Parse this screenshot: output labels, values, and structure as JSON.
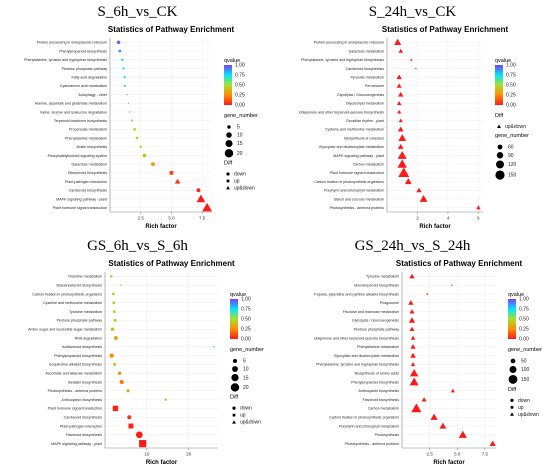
{
  "chart_data": [
    {
      "type": "scatter",
      "panel_title": "S_6h_vs_CK",
      "title": "Statistics of Pathway Enrichment",
      "xlabel": "Rich factor",
      "xticks": [
        2.5,
        5.0,
        7.5
      ],
      "xlim": [
        0,
        8.3
      ],
      "categories": [
        "Protein processing in endoplasmic reticulum",
        "Phenylpropanoid biosynthesis",
        "Phenylalanine, tyrosine and tryptophan biosynthesis",
        "Pentose phosphate pathway",
        "Fatty acid degradation",
        "Cyanoamino acid metabolism",
        "Autophagy - other",
        "Alanine, aspartate and glutamate metabolism",
        "Valine, leucine and isoleucine degradation",
        "Terpenoid backbone biosynthesis",
        "Propanoate metabolism",
        "Phenylalanine metabolism",
        "Zeatin biosynthesis",
        "Phosphatidylinositol signaling system",
        "Galactose metabolism",
        "Diterpenoid biosynthesis",
        "Plant-pathogen interaction",
        "Carotenoid biosynthesis",
        "MAPK signaling pathway - plant",
        "Plant hormone signal transduction"
      ],
      "points": [
        {
          "x": 0.7,
          "q": 0.95,
          "n": 5,
          "diff": "down"
        },
        {
          "x": 0.8,
          "q": 0.85,
          "n": 4,
          "diff": "down"
        },
        {
          "x": 1.0,
          "q": 0.8,
          "n": 3,
          "diff": "down"
        },
        {
          "x": 1.1,
          "q": 0.72,
          "n": 3,
          "diff": "down"
        },
        {
          "x": 1.2,
          "q": 0.7,
          "n": 3,
          "diff": "down"
        },
        {
          "x": 1.2,
          "q": 0.65,
          "n": 3,
          "diff": "down"
        },
        {
          "x": 1.4,
          "q": 0.62,
          "n": 2,
          "diff": "down"
        },
        {
          "x": 1.5,
          "q": 0.6,
          "n": 2,
          "diff": "down"
        },
        {
          "x": 1.6,
          "q": 0.58,
          "n": 2,
          "diff": "down"
        },
        {
          "x": 1.8,
          "q": 0.55,
          "n": 3,
          "diff": "down"
        },
        {
          "x": 2.0,
          "q": 0.5,
          "n": 4,
          "diff": "down"
        },
        {
          "x": 2.2,
          "q": 0.45,
          "n": 4,
          "diff": "down"
        },
        {
          "x": 2.5,
          "q": 0.4,
          "n": 3,
          "diff": "down"
        },
        {
          "x": 2.8,
          "q": 0.35,
          "n": 5,
          "diff": "down"
        },
        {
          "x": 3.5,
          "q": 0.3,
          "n": 6,
          "diff": "down"
        },
        {
          "x": 5.0,
          "q": 0.08,
          "n": 7,
          "diff": "up"
        },
        {
          "x": 5.5,
          "q": 0.05,
          "n": 8,
          "diff": "up&down"
        },
        {
          "x": 7.2,
          "q": 0.02,
          "n": 6,
          "diff": "down"
        },
        {
          "x": 7.4,
          "q": 0.0,
          "n": 16,
          "diff": "up&down"
        },
        {
          "x": 7.9,
          "q": 0.0,
          "n": 19,
          "diff": "up&down"
        }
      ],
      "legend": {
        "qvalue_title": "qvalue",
        "qvalue_ticks": [
          "1.00",
          "0.75",
          "0.50",
          "0.25",
          "0.00"
        ],
        "size_title": "gene_number",
        "size_ticks": [
          5,
          10,
          15,
          20
        ],
        "diff_title": "Diff",
        "diff_items": [
          "down",
          "up",
          "up&down"
        ]
      }
    },
    {
      "type": "scatter",
      "panel_title": "S_24h_vs_CK",
      "title": "Statistics of Pathway Enrichment",
      "xlabel": "Rich factor",
      "xticks": [
        2,
        4,
        6
      ],
      "xlim": [
        0,
        6.3
      ],
      "categories": [
        "Protein processing in endoplasmic reticulum",
        "Galactose metabolism",
        "Phenylalanine, tyrosine and tryptophan biosynthesis",
        "Carotenoid biosynthesis",
        "Pyruvate metabolism",
        "Peroxisome",
        "Glycolysis / Gluconeogenesis",
        "Glycerolipid metabolism",
        "Ubiquinone and other terpenoid-quinone biosynthesis",
        "Circadian rhythm - plant",
        "Cysteine and methionine metabolism",
        "Biosynthesis of cofactors",
        "Glyoxylate and dicarboxylate metabolism",
        "MAPK signaling pathway - plant",
        "Carbon metabolism",
        "Plant hormone signal transduction",
        "Carbon fixation in photosynthetic organisms",
        "Porphyrin and chlorophyll metabolism",
        "Starch and sucrose metabolism",
        "Photosynthesis - antenna proteins"
      ],
      "points": [
        {
          "x": 0.7,
          "q": 0.0,
          "n": 80,
          "diff": "up&down"
        },
        {
          "x": 0.9,
          "q": 0.0,
          "n": 45,
          "diff": "up&down"
        },
        {
          "x": 1.6,
          "q": 0.0,
          "n": 25,
          "diff": "up&down"
        },
        {
          "x": 1.9,
          "q": 0.0,
          "n": 20,
          "diff": "up&down"
        },
        {
          "x": 0.8,
          "q": 0.0,
          "n": 55,
          "diff": "up&down"
        },
        {
          "x": 0.8,
          "q": 0.0,
          "n": 50,
          "diff": "up&down"
        },
        {
          "x": 0.9,
          "q": 0.0,
          "n": 55,
          "diff": "up&down"
        },
        {
          "x": 0.8,
          "q": 0.0,
          "n": 45,
          "diff": "up&down"
        },
        {
          "x": 0.8,
          "q": 0.0,
          "n": 40,
          "diff": "up&down"
        },
        {
          "x": 0.9,
          "q": 0.0,
          "n": 40,
          "diff": "up&down"
        },
        {
          "x": 0.9,
          "q": 0.0,
          "n": 60,
          "diff": "up&down"
        },
        {
          "x": 1.0,
          "q": 0.0,
          "n": 90,
          "diff": "up&down"
        },
        {
          "x": 0.9,
          "q": 0.0,
          "n": 60,
          "diff": "up&down"
        },
        {
          "x": 1.0,
          "q": 0.0,
          "n": 110,
          "diff": "up&down"
        },
        {
          "x": 1.0,
          "q": 0.0,
          "n": 120,
          "diff": "up&down"
        },
        {
          "x": 1.1,
          "q": 0.0,
          "n": 150,
          "diff": "up&down"
        },
        {
          "x": 1.4,
          "q": 0.0,
          "n": 75,
          "diff": "up&down"
        },
        {
          "x": 2.1,
          "q": 0.0,
          "n": 55,
          "diff": "up&down"
        },
        {
          "x": 2.4,
          "q": 0.0,
          "n": 90,
          "diff": "up&down"
        },
        {
          "x": 6.0,
          "q": 0.0,
          "n": 45,
          "diff": "up&down"
        }
      ],
      "legend": {
        "qvalue_title": "qvalue",
        "qvalue_ticks": [
          "1.00",
          "0.75",
          "0.50",
          "0.25",
          "0.00"
        ],
        "size_title": "gene_number",
        "size_ticks": [
          60,
          90,
          120,
          150
        ],
        "diff_title": "Diff",
        "diff_items": [
          "up&down"
        ]
      }
    },
    {
      "type": "scatter",
      "panel_title": "GS_6h_vs_S_6h",
      "title": "Statistics of Pathway Enrichment",
      "xlabel": "Rich factor",
      "xticks": [
        10,
        20
      ],
      "xlim": [
        0,
        27
      ],
      "categories": [
        "Thiamine metabolism",
        "Brassinosteroid biosynthesis",
        "Carbon fixation in photosynthetic organisms",
        "Cysteine and methionine metabolism",
        "Tyrosine metabolism",
        "Pentose phosphate pathway",
        "Amino sugar and nucleotide sugar metabolism",
        "RNA degradation",
        "Isoflavonoid biosynthesis",
        "Phenylpropanoid biosynthesis",
        "Isoquinoline alkaloid biosynthesis",
        "Ascorbate and aldarate metabolism",
        "Betalain biosynthesis",
        "Photosynthesis - antenna proteins",
        "Anthocyanin biosynthesis",
        "Plant hormone signal transduction",
        "Carotenoid biosynthesis",
        "Plant-pathogen interaction",
        "Flavonoid biosynthesis",
        "MAPK signaling pathway - plant"
      ],
      "points": [
        {
          "x": 1.5,
          "q": 0.3,
          "n": 2,
          "diff": "up"
        },
        {
          "x": 3.8,
          "q": 0.6,
          "n": 1,
          "diff": "up"
        },
        {
          "x": 2.0,
          "q": 0.45,
          "n": 3,
          "diff": "up"
        },
        {
          "x": 2.1,
          "q": 0.45,
          "n": 3,
          "diff": "up"
        },
        {
          "x": 2.2,
          "q": 0.45,
          "n": 3,
          "diff": "up"
        },
        {
          "x": 2.4,
          "q": 0.42,
          "n": 3,
          "diff": "down"
        },
        {
          "x": 1.8,
          "q": 0.35,
          "n": 4,
          "diff": "up"
        },
        {
          "x": 2.6,
          "q": 0.35,
          "n": 5,
          "diff": "down"
        },
        {
          "x": 26.0,
          "q": 0.7,
          "n": 1,
          "diff": "up"
        },
        {
          "x": 1.6,
          "q": 0.25,
          "n": 6,
          "diff": "up"
        },
        {
          "x": 2.3,
          "q": 0.35,
          "n": 3,
          "diff": "up"
        },
        {
          "x": 3.5,
          "q": 0.25,
          "n": 4,
          "diff": "up"
        },
        {
          "x": 4.0,
          "q": 0.2,
          "n": 5,
          "diff": "down"
        },
        {
          "x": 5.5,
          "q": 0.25,
          "n": 3,
          "diff": "up"
        },
        {
          "x": 14.5,
          "q": 0.35,
          "n": 2,
          "diff": "up"
        },
        {
          "x": 2.5,
          "q": 0.02,
          "n": 12,
          "diff": "up"
        },
        {
          "x": 5.8,
          "q": 0.05,
          "n": 5,
          "diff": "down"
        },
        {
          "x": 6.2,
          "q": 0.02,
          "n": 10,
          "diff": "up"
        },
        {
          "x": 8.2,
          "q": 0.0,
          "n": 13,
          "diff": "down"
        },
        {
          "x": 9.0,
          "q": 0.0,
          "n": 20,
          "diff": "up"
        }
      ],
      "legend": {
        "qvalue_title": "qvalue",
        "qvalue_ticks": [
          "1.00",
          "0.75",
          "0.50",
          "0.25",
          "0.00"
        ],
        "size_title": "gene_number",
        "size_ticks": [
          5,
          10,
          15,
          20
        ],
        "diff_title": "Diff",
        "diff_items": [
          "down",
          "up",
          "up&down"
        ]
      }
    },
    {
      "type": "scatter",
      "panel_title": "GS_24h_vs_S_24h",
      "title": "Statistics of Pathway Enrichment",
      "xlabel": "Rich factor",
      "xticks": [
        2.5,
        5.0,
        7.5
      ],
      "xlim": [
        0,
        8.5
      ],
      "categories": [
        "Tyrosine metabolism",
        "Monoterpenoid biosynthesis",
        "Tropane, piperidine and pyridine alkaloid biosynthesis",
        "Phagosome",
        "Fructose and mannose metabolism",
        "Glycolysis / Gluconeogenesis",
        "Pentose phosphate pathway",
        "Ubiquinone and other terpenoid-quinone biosynthesis",
        "Phenylalanine metabolism",
        "Glyoxylate and dicarboxylate metabolism",
        "Phenylalanine, tyrosine and tryptophan biosynthesis",
        "Biosynthesis of amino acids",
        "Phenylpropanoid biosynthesis",
        "Anthocyanin biosynthesis",
        "Flavonoid biosynthesis",
        "Carbon metabolism",
        "Carbon fixation in photosynthetic organisms",
        "Porphyrin and chlorophyll metabolism",
        "Photosynthesis",
        "Photosynthesis - antenna proteins"
      ],
      "points": [
        {
          "x": 0.9,
          "q": 0.0,
          "n": 45,
          "diff": "up&down"
        },
        {
          "x": 4.5,
          "q": 0.05,
          "n": 10,
          "diff": "up&down"
        },
        {
          "x": 2.3,
          "q": 0.0,
          "n": 12,
          "diff": "up&down"
        },
        {
          "x": 0.8,
          "q": 0.0,
          "n": 45,
          "diff": "up&down"
        },
        {
          "x": 0.9,
          "q": 0.0,
          "n": 40,
          "diff": "up&down"
        },
        {
          "x": 0.9,
          "q": 0.0,
          "n": 60,
          "diff": "up&down"
        },
        {
          "x": 0.9,
          "q": 0.0,
          "n": 40,
          "diff": "up&down"
        },
        {
          "x": 1.0,
          "q": 0.0,
          "n": 35,
          "diff": "up&down"
        },
        {
          "x": 1.0,
          "q": 0.0,
          "n": 45,
          "diff": "up&down"
        },
        {
          "x": 1.0,
          "q": 0.0,
          "n": 50,
          "diff": "up&down"
        },
        {
          "x": 1.0,
          "q": 0.0,
          "n": 35,
          "diff": "up&down"
        },
        {
          "x": 1.1,
          "q": 0.0,
          "n": 100,
          "diff": "up&down"
        },
        {
          "x": 1.1,
          "q": 0.0,
          "n": 110,
          "diff": "up&down"
        },
        {
          "x": 4.6,
          "q": 0.0,
          "n": 30,
          "diff": "up&down"
        },
        {
          "x": 2.0,
          "q": 0.0,
          "n": 40,
          "diff": "up&down"
        },
        {
          "x": 1.3,
          "q": 0.0,
          "n": 140,
          "diff": "up&down"
        },
        {
          "x": 2.9,
          "q": 0.0,
          "n": 75,
          "diff": "up&down"
        },
        {
          "x": 3.7,
          "q": 0.0,
          "n": 70,
          "diff": "up&down"
        },
        {
          "x": 5.5,
          "q": 0.0,
          "n": 95,
          "diff": "up&down"
        },
        {
          "x": 8.2,
          "q": 0.0,
          "n": 60,
          "diff": "up&down"
        }
      ],
      "legend": {
        "qvalue_title": "qvalue",
        "qvalue_ticks": [
          "1.00",
          "0.75",
          "0.50",
          "0.25",
          "0.00"
        ],
        "size_title": "gene_number",
        "size_ticks": [
          50,
          100,
          150
        ],
        "diff_title": "Diff",
        "diff_items": [
          "down",
          "up",
          "up&down"
        ]
      }
    }
  ],
  "colors": {
    "q0": "#ff1a1a",
    "q25": "#ff8c00",
    "q50": "#a6e22e",
    "q75": "#00e5ff",
    "q100": "#7a3cff"
  }
}
